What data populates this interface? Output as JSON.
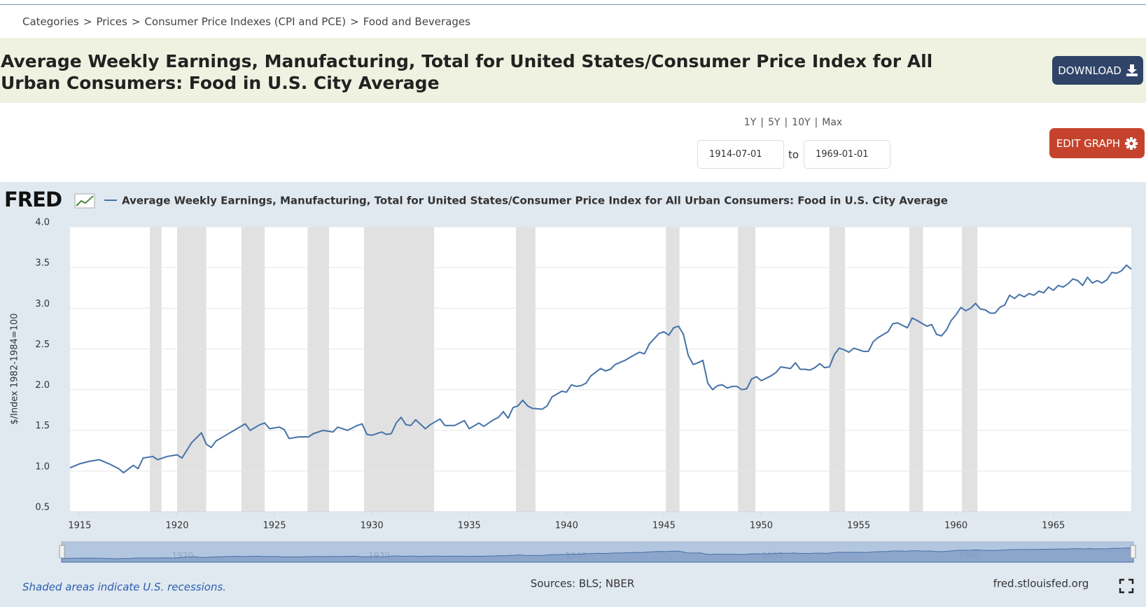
{
  "breadcrumb": [
    "Categories",
    "Prices",
    "Consumer Price Indexes (CPI and PCE)",
    "Food and Beverages"
  ],
  "breadcrumb_separator": ">",
  "title": "Average Weekly Earnings, Manufacturing, Total for United States/Consumer Price Index for All Urban Consumers: Food in U.S. City Average",
  "download_button": "DOWNLOAD",
  "edit_button": "EDIT GRAPH",
  "range": {
    "buttons": [
      "1Y",
      "5Y",
      "10Y",
      "Max"
    ],
    "separator": "|",
    "start": "1914-07-01",
    "to": "to",
    "end": "1969-01-01"
  },
  "logo": "FRED",
  "chart_data": {
    "type": "line",
    "y_label": "$/Index 1982-1984=100",
    "xlim": [
      1914.5,
      1969
    ],
    "xticks": [
      1915,
      1920,
      1925,
      1930,
      1935,
      1940,
      1945,
      1950,
      1955,
      1960,
      1965
    ],
    "ylim": [
      0.5,
      4.0
    ],
    "yticks": [
      0.5,
      {
        "value": 1.0,
        "label": "1.0"
      },
      1.5,
      {
        "value": 2.0,
        "label": "2.0"
      },
      2.5,
      {
        "value": 3.0,
        "label": "3.0"
      },
      3.5,
      {
        "value": 4.0,
        "label": "4.0"
      }
    ],
    "grid": true,
    "recession_color": "#e1e1e1",
    "recessions": [
      [
        1918.6,
        1919.2
      ],
      [
        1920.0,
        1921.5
      ],
      [
        1923.3,
        1924.5
      ],
      [
        1926.7,
        1927.8
      ],
      [
        1929.6,
        1933.2
      ],
      [
        1937.4,
        1938.4
      ],
      [
        1945.1,
        1945.8
      ],
      [
        1948.8,
        1949.7
      ],
      [
        1953.5,
        1954.3
      ],
      [
        1957.6,
        1958.3
      ],
      [
        1960.3,
        1961.1
      ]
    ],
    "navigator_xticks": [
      1920,
      1930,
      1940,
      1950,
      1960
    ],
    "x": [
      1914.5,
      1915,
      1915.5,
      1916,
      1916.5,
      1917,
      1917.25,
      1917.75,
      1918,
      1918.25,
      1918.75,
      1919,
      1919.5,
      1920,
      1920.25,
      1920.75,
      1921.25,
      1921.5,
      1921.75,
      1922,
      1922.5,
      1923,
      1923.5,
      1923.75,
      1924.25,
      1924.5,
      1924.75,
      1925.25,
      1925.5,
      1925.75,
      1926.25,
      1926.75,
      1927,
      1927.5,
      1928,
      1928.25,
      1928.75,
      1929.25,
      1929.5,
      1929.75,
      1930,
      1930.5,
      1930.75,
      1931,
      1931.25,
      1931.5,
      1931.75,
      1932,
      1932.25,
      1932.75,
      1933,
      1933.5,
      1933.75,
      1934.25,
      1934.75,
      1935,
      1935.5,
      1935.75,
      1936.25,
      1936.5,
      1936.75,
      1937,
      1937.25,
      1937.5,
      1937.75,
      1938,
      1938.25,
      1938.75,
      1939,
      1939.25,
      1939.75,
      1940,
      1940.25,
      1940.5,
      1940.75,
      1941,
      1941.25,
      1941.75,
      1942,
      1942.25,
      1942.5,
      1943,
      1943.5,
      1943.75,
      1944,
      1944.25,
      1944.75,
      1945,
      1945.25,
      1945.5,
      1945.75,
      1946,
      1946.25,
      1946.5,
      1946.75,
      1947,
      1947.25,
      1947.5,
      1947.75,
      1948,
      1948.25,
      1948.5,
      1948.75,
      1949,
      1949.25,
      1949.5,
      1949.75,
      1950,
      1950.5,
      1950.75,
      1951,
      1951.5,
      1951.75,
      1952,
      1952.25,
      1952.5,
      1952.75,
      1953,
      1953.25,
      1953.5,
      1953.75,
      1954,
      1954.25,
      1954.5,
      1954.75,
      1955,
      1955.25,
      1955.5,
      1955.75,
      1956,
      1956.5,
      1956.75,
      1957,
      1957.25,
      1957.5,
      1957.75,
      1958,
      1958.5,
      1958.75,
      1959,
      1959.25,
      1959.5,
      1959.75,
      1960,
      1960.25,
      1960.5,
      1960.75,
      1961,
      1961.25,
      1961.5,
      1961.75,
      1962,
      1962.25,
      1962.5,
      1962.75,
      1963,
      1963.25,
      1963.5,
      1963.75,
      1964,
      1964.25,
      1964.5,
      1964.75,
      1965,
      1965.25,
      1965.5,
      1965.75,
      1966,
      1966.25,
      1966.5,
      1966.75,
      1967,
      1967.25,
      1967.5,
      1967.75,
      1968,
      1968.25,
      1968.5,
      1968.75,
      1969
    ],
    "series": [
      {
        "name": "Average Weekly Earnings, Manufacturing, Total for United States/Consumer Price Index for All Urban Consumers: Food in U.S. City Average",
        "color": "#4572a7",
        "values": [
          1.04,
          1.09,
          1.12,
          1.14,
          1.09,
          1.03,
          0.98,
          1.07,
          1.03,
          1.16,
          1.18,
          1.14,
          1.18,
          1.2,
          1.16,
          1.35,
          1.47,
          1.33,
          1.29,
          1.37,
          1.44,
          1.51,
          1.58,
          1.5,
          1.57,
          1.59,
          1.52,
          1.54,
          1.51,
          1.4,
          1.42,
          1.42,
          1.46,
          1.5,
          1.48,
          1.54,
          1.5,
          1.56,
          1.58,
          1.45,
          1.44,
          1.48,
          1.45,
          1.46,
          1.59,
          1.66,
          1.57,
          1.56,
          1.63,
          1.52,
          1.57,
          1.64,
          1.56,
          1.56,
          1.62,
          1.52,
          1.59,
          1.55,
          1.63,
          1.66,
          1.73,
          1.65,
          1.78,
          1.8,
          1.87,
          1.8,
          1.77,
          1.76,
          1.8,
          1.91,
          1.98,
          1.97,
          2.06,
          2.04,
          2.05,
          2.08,
          2.17,
          2.26,
          2.23,
          2.25,
          2.31,
          2.36,
          2.43,
          2.46,
          2.44,
          2.56,
          2.69,
          2.71,
          2.67,
          2.76,
          2.78,
          2.68,
          2.42,
          2.31,
          2.33,
          2.36,
          2.08,
          2.0,
          2.05,
          2.06,
          2.02,
          2.04,
          2.04,
          2.0,
          2.01,
          2.13,
          2.16,
          2.11,
          2.17,
          2.21,
          2.28,
          2.26,
          2.33,
          2.25,
          2.25,
          2.24,
          2.27,
          2.32,
          2.27,
          2.28,
          2.43,
          2.51,
          2.49,
          2.46,
          2.51,
          2.49,
          2.47,
          2.47,
          2.59,
          2.64,
          2.71,
          2.81,
          2.82,
          2.79,
          2.76,
          2.88,
          2.85,
          2.78,
          2.8,
          2.68,
          2.66,
          2.73,
          2.85,
          2.92,
          3.01,
          2.97,
          3.0,
          3.06,
          2.99,
          2.98,
          2.94,
          2.94,
          3.01,
          3.04,
          3.16,
          3.12,
          3.17,
          3.14,
          3.18,
          3.16,
          3.21,
          3.19,
          3.26,
          3.22,
          3.28,
          3.26,
          3.3,
          3.36,
          3.34,
          3.28,
          3.38,
          3.31,
          3.34,
          3.31,
          3.35,
          3.44,
          3.43,
          3.46,
          3.53,
          3.48
        ]
      }
    ]
  },
  "footer": {
    "note": "Shaded areas indicate U.S. recessions.",
    "sources": "Sources: BLS; NBER",
    "site": "fred.stlouisfed.org"
  }
}
